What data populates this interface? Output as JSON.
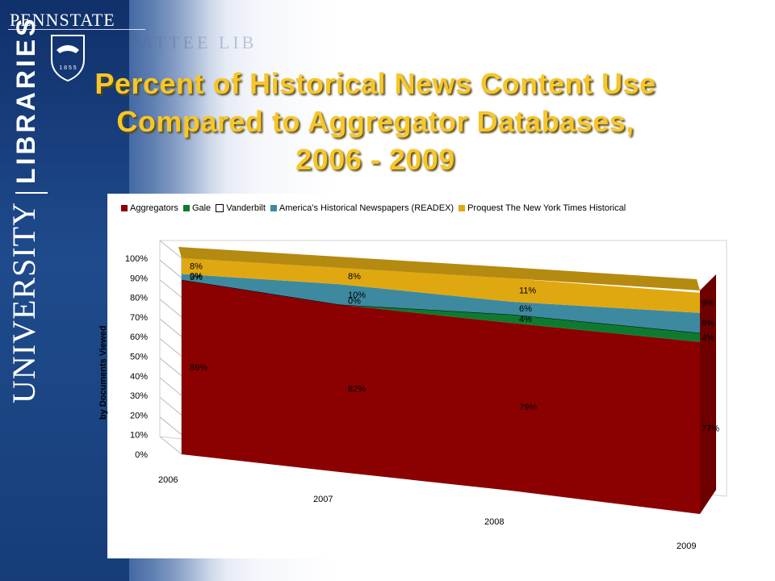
{
  "header": {
    "brand": "PENNSTATE",
    "shield_year": "1 8 5 5",
    "watermark": "PATTEE LIB",
    "side_university": "UNIVERSITY",
    "side_libraries": "LIBRARIES"
  },
  "slide": {
    "title": "Percent of Historical News Content Use Compared to Aggregator Databases, 2006 - 2009"
  },
  "chart_data": {
    "type": "area",
    "stacked_percent": true,
    "categories": [
      "2006",
      "2007",
      "2008",
      "2009"
    ],
    "ylabel": "by Documents Viewed",
    "y_ticks": [
      "0%",
      "10%",
      "20%",
      "30%",
      "40%",
      "50%",
      "60%",
      "70%",
      "80%",
      "90%",
      "100%"
    ],
    "ylim": [
      0,
      100
    ],
    "legend_position": "top",
    "series": [
      {
        "name": "Aggregators",
        "color": "#8b0000",
        "values": [
          89,
          82,
          79,
          77
        ],
        "labels": [
          "89%",
          "82%",
          "79%",
          "77%"
        ]
      },
      {
        "name": "Gale",
        "color": "#0e7a2f",
        "values": [
          0,
          0,
          4,
          4
        ],
        "labels": [
          "",
          "",
          "4%",
          "4%"
        ]
      },
      {
        "name": "Vanderbilt",
        "color": "#ffffff",
        "values": [
          0,
          0,
          0,
          0
        ],
        "labels": [
          "0%",
          "0%",
          "",
          ""
        ]
      },
      {
        "name": "America’s Historical Newspapers (READEX)",
        "color": "#3d8aa0",
        "values": [
          3,
          10,
          6,
          9
        ],
        "labels": [
          "3%",
          "10%",
          "6%",
          "9%"
        ]
      },
      {
        "name": "Proquest The New York Times Historical",
        "color": "#e0a810",
        "values": [
          8,
          8,
          11,
          9
        ],
        "labels": [
          "8%",
          "8%",
          "11%",
          "9%"
        ]
      }
    ]
  }
}
